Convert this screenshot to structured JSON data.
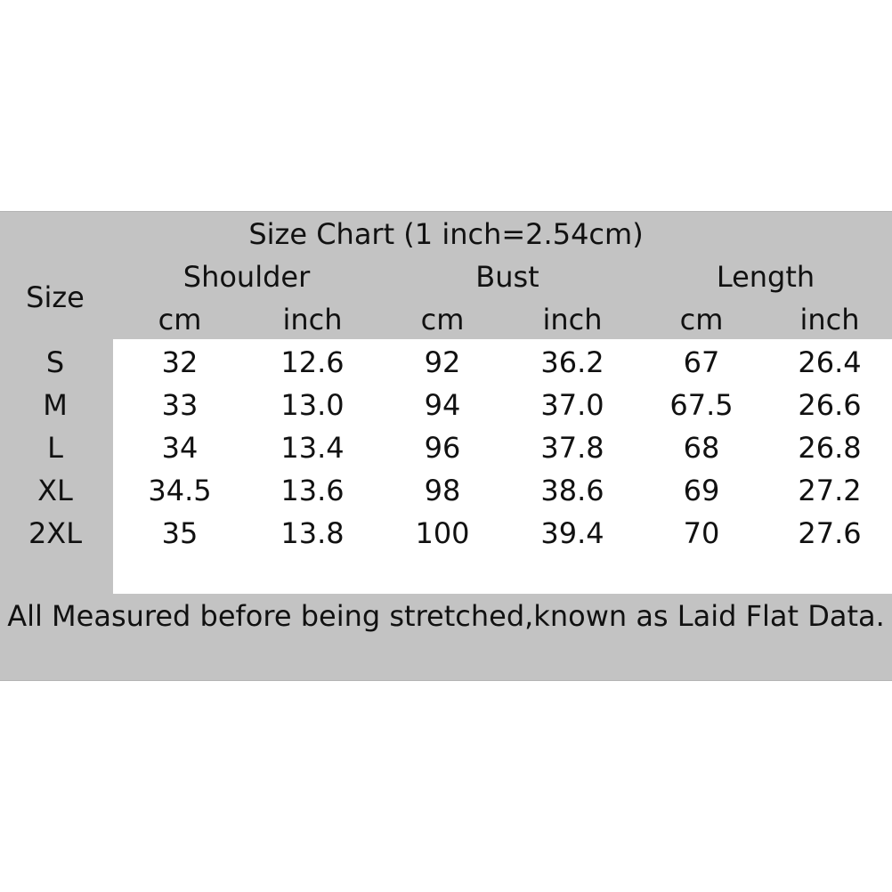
{
  "title": "Size Chart (1 inch=2.54cm)",
  "size_header": "Size",
  "groups": [
    "Shoulder",
    "Bust",
    "Length"
  ],
  "units": [
    "cm",
    "inch",
    "cm",
    "inch",
    "cm",
    "inch"
  ],
  "rows": [
    [
      "S",
      "32",
      "12.6",
      "92",
      "36.2",
      "67",
      "26.4"
    ],
    [
      "M",
      "33",
      "13.0",
      "94",
      "37.0",
      "67.5",
      "26.6"
    ],
    [
      "L",
      "34",
      "13.4",
      "96",
      "37.8",
      "68",
      "26.8"
    ],
    [
      "XL",
      "34.5",
      "13.6",
      "98",
      "38.6",
      "69",
      "27.2"
    ],
    [
      "2XL",
      "35",
      "13.8",
      "100",
      "39.4",
      "70",
      "27.6"
    ]
  ],
  "footer": "All Measured before being stretched,known as Laid Flat Data.",
  "colors": {
    "band": "#c3c3c3",
    "body": "#ffffff",
    "text": "#111111"
  }
}
